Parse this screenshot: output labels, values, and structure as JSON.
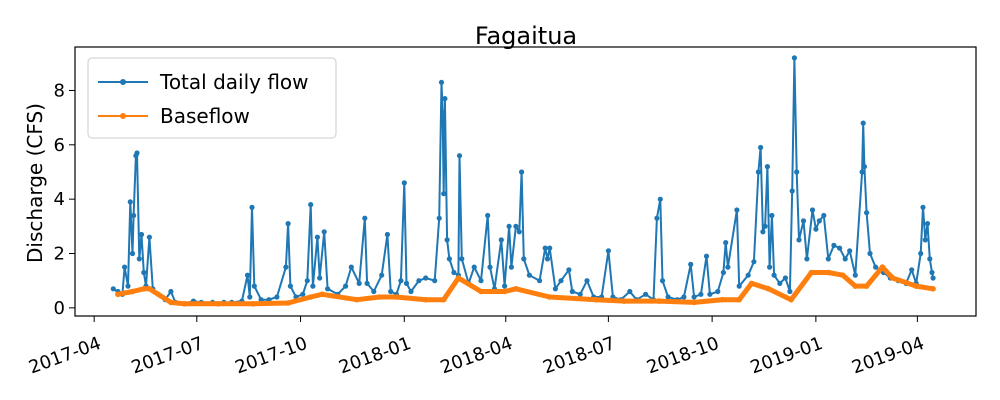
{
  "chart_data": {
    "type": "line",
    "title": "Fagaitua",
    "xlabel": "",
    "ylabel": "Discharge (CFS)",
    "ylim": [
      -0.3,
      9.6
    ],
    "xlim": [
      "2017-03-15",
      "2019-05-23"
    ],
    "yticks": [
      0,
      2,
      4,
      6,
      8
    ],
    "xticks": [
      "2017-04",
      "2017-07",
      "2017-10",
      "2018-01",
      "2018-04",
      "2018-07",
      "2018-10",
      "2019-01",
      "2019-04"
    ],
    "legend": "upper-left",
    "grid": false,
    "colors": {
      "total": "#1f77b4",
      "baseflow": "#ff7f0e"
    },
    "series": [
      {
        "name": "Total daily flow",
        "points": [
          [
            "2017-04-18",
            0.7
          ],
          [
            "2017-04-22",
            0.6
          ],
          [
            "2017-04-26",
            0.5
          ],
          [
            "2017-04-28",
            1.5
          ],
          [
            "2017-05-01",
            0.8
          ],
          [
            "2017-05-03",
            3.9
          ],
          [
            "2017-05-05",
            2.0
          ],
          [
            "2017-05-06",
            3.4
          ],
          [
            "2017-05-08",
            5.6
          ],
          [
            "2017-05-09",
            5.7
          ],
          [
            "2017-05-11",
            1.8
          ],
          [
            "2017-05-13",
            2.7
          ],
          [
            "2017-05-15",
            1.3
          ],
          [
            "2017-05-17",
            0.8
          ],
          [
            "2017-05-20",
            2.6
          ],
          [
            "2017-05-23",
            0.7
          ],
          [
            "2017-05-28",
            0.5
          ],
          [
            "2017-06-03",
            0.3
          ],
          [
            "2017-06-08",
            0.6
          ],
          [
            "2017-06-12",
            0.2
          ],
          [
            "2017-06-20",
            0.15
          ],
          [
            "2017-06-28",
            0.25
          ],
          [
            "2017-07-05",
            0.2
          ],
          [
            "2017-07-15",
            0.2
          ],
          [
            "2017-07-25",
            0.2
          ],
          [
            "2017-08-01",
            0.2
          ],
          [
            "2017-08-10",
            0.25
          ],
          [
            "2017-08-15",
            1.2
          ],
          [
            "2017-08-17",
            0.4
          ],
          [
            "2017-08-19",
            3.7
          ],
          [
            "2017-08-21",
            0.8
          ],
          [
            "2017-08-27",
            0.3
          ],
          [
            "2017-09-03",
            0.3
          ],
          [
            "2017-09-10",
            0.4
          ],
          [
            "2017-09-18",
            1.5
          ],
          [
            "2017-09-20",
            3.1
          ],
          [
            "2017-09-22",
            0.8
          ],
          [
            "2017-09-27",
            0.4
          ],
          [
            "2017-10-03",
            0.5
          ],
          [
            "2017-10-07",
            1.0
          ],
          [
            "2017-10-10",
            3.8
          ],
          [
            "2017-10-12",
            0.8
          ],
          [
            "2017-10-16",
            2.6
          ],
          [
            "2017-10-18",
            1.1
          ],
          [
            "2017-10-22",
            2.8
          ],
          [
            "2017-10-25",
            0.7
          ],
          [
            "2017-11-03",
            0.5
          ],
          [
            "2017-11-10",
            0.8
          ],
          [
            "2017-11-15",
            1.5
          ],
          [
            "2017-11-22",
            0.9
          ],
          [
            "2017-11-27",
            3.3
          ],
          [
            "2017-11-29",
            0.9
          ],
          [
            "2017-12-05",
            0.6
          ],
          [
            "2017-12-12",
            1.2
          ],
          [
            "2017-12-17",
            2.7
          ],
          [
            "2017-12-20",
            0.6
          ],
          [
            "2017-12-25",
            0.5
          ],
          [
            "2017-12-29",
            1.0
          ],
          [
            "2018-01-01",
            4.6
          ],
          [
            "2018-01-03",
            0.9
          ],
          [
            "2018-01-07",
            0.6
          ],
          [
            "2018-01-14",
            1.0
          ],
          [
            "2018-01-20",
            1.1
          ],
          [
            "2018-01-28",
            1.0
          ],
          [
            "2018-02-01",
            3.3
          ],
          [
            "2018-02-03",
            8.3
          ],
          [
            "2018-02-04",
            7.2
          ],
          [
            "2018-02-05",
            4.2
          ],
          [
            "2018-02-06",
            7.7
          ],
          [
            "2018-02-08",
            2.5
          ],
          [
            "2018-02-10",
            1.8
          ],
          [
            "2018-02-14",
            1.3
          ],
          [
            "2018-02-18",
            1.2
          ],
          [
            "2018-02-19",
            5.6
          ],
          [
            "2018-02-21",
            1.8
          ],
          [
            "2018-02-27",
            0.9
          ],
          [
            "2018-03-04",
            1.5
          ],
          [
            "2018-03-10",
            1.0
          ],
          [
            "2018-03-16",
            3.4
          ],
          [
            "2018-03-18",
            1.5
          ],
          [
            "2018-03-22",
            0.7
          ],
          [
            "2018-03-28",
            2.5
          ],
          [
            "2018-03-31",
            0.8
          ],
          [
            "2018-04-04",
            3.0
          ],
          [
            "2018-04-06",
            1.5
          ],
          [
            "2018-04-10",
            3.0
          ],
          [
            "2018-04-13",
            2.8
          ],
          [
            "2018-04-15",
            5.0
          ],
          [
            "2018-04-17",
            1.8
          ],
          [
            "2018-04-22",
            1.2
          ],
          [
            "2018-05-01",
            1.0
          ],
          [
            "2018-05-06",
            2.2
          ],
          [
            "2018-05-08",
            1.8
          ],
          [
            "2018-05-10",
            2.2
          ],
          [
            "2018-05-15",
            0.7
          ],
          [
            "2018-05-20",
            1.0
          ],
          [
            "2018-05-27",
            1.4
          ],
          [
            "2018-05-30",
            0.6
          ],
          [
            "2018-06-06",
            0.5
          ],
          [
            "2018-06-12",
            1.0
          ],
          [
            "2018-06-18",
            0.4
          ],
          [
            "2018-06-25",
            0.4
          ],
          [
            "2018-07-01",
            2.1
          ],
          [
            "2018-07-05",
            0.4
          ],
          [
            "2018-07-12",
            0.3
          ],
          [
            "2018-07-20",
            0.6
          ],
          [
            "2018-07-26",
            0.3
          ],
          [
            "2018-08-03",
            0.5
          ],
          [
            "2018-08-10",
            0.3
          ],
          [
            "2018-08-13",
            3.3
          ],
          [
            "2018-08-16",
            4.0
          ],
          [
            "2018-08-18",
            1.0
          ],
          [
            "2018-08-23",
            0.4
          ],
          [
            "2018-08-31",
            0.3
          ],
          [
            "2018-09-06",
            0.4
          ],
          [
            "2018-09-12",
            1.6
          ],
          [
            "2018-09-15",
            0.4
          ],
          [
            "2018-09-21",
            0.5
          ],
          [
            "2018-09-26",
            1.9
          ],
          [
            "2018-09-29",
            0.5
          ],
          [
            "2018-10-06",
            0.6
          ],
          [
            "2018-10-11",
            1.3
          ],
          [
            "2018-10-13",
            2.4
          ],
          [
            "2018-10-15",
            1.5
          ],
          [
            "2018-10-23",
            3.6
          ],
          [
            "2018-10-25",
            0.8
          ],
          [
            "2018-11-02",
            1.2
          ],
          [
            "2018-11-07",
            1.7
          ],
          [
            "2018-11-11",
            5.0
          ],
          [
            "2018-11-13",
            5.9
          ],
          [
            "2018-11-15",
            2.8
          ],
          [
            "2018-11-17",
            3.0
          ],
          [
            "2018-11-19",
            5.2
          ],
          [
            "2018-11-21",
            1.5
          ],
          [
            "2018-11-23",
            3.4
          ],
          [
            "2018-11-25",
            1.2
          ],
          [
            "2018-11-30",
            0.9
          ],
          [
            "2018-12-05",
            1.1
          ],
          [
            "2018-12-09",
            0.6
          ],
          [
            "2018-12-11",
            4.3
          ],
          [
            "2018-12-13",
            9.2
          ],
          [
            "2018-12-15",
            5.0
          ],
          [
            "2018-12-17",
            2.5
          ],
          [
            "2018-12-21",
            3.2
          ],
          [
            "2018-12-24",
            1.8
          ],
          [
            "2018-12-29",
            3.6
          ],
          [
            "2019-01-01",
            2.9
          ],
          [
            "2019-01-04",
            3.2
          ],
          [
            "2019-01-08",
            3.4
          ],
          [
            "2019-01-12",
            1.8
          ],
          [
            "2019-01-17",
            2.3
          ],
          [
            "2019-01-22",
            2.2
          ],
          [
            "2019-01-27",
            1.8
          ],
          [
            "2019-01-31",
            2.1
          ],
          [
            "2019-02-05",
            1.2
          ],
          [
            "2019-02-11",
            5.0
          ],
          [
            "2019-02-12",
            6.8
          ],
          [
            "2019-02-13",
            5.2
          ],
          [
            "2019-02-15",
            3.5
          ],
          [
            "2019-02-18",
            2.0
          ],
          [
            "2019-02-23",
            1.5
          ],
          [
            "2019-03-02",
            1.3
          ],
          [
            "2019-03-08",
            1.1
          ],
          [
            "2019-03-15",
            1.0
          ],
          [
            "2019-03-22",
            0.9
          ],
          [
            "2019-03-27",
            1.4
          ],
          [
            "2019-03-31",
            0.9
          ],
          [
            "2019-04-04",
            2.0
          ],
          [
            "2019-04-06",
            3.7
          ],
          [
            "2019-04-08",
            2.5
          ],
          [
            "2019-04-10",
            3.1
          ],
          [
            "2019-04-12",
            1.8
          ],
          [
            "2019-04-14",
            1.3
          ],
          [
            "2019-04-15",
            1.1
          ]
        ]
      },
      {
        "name": "Baseflow",
        "points": [
          [
            "2017-04-22",
            0.5
          ],
          [
            "2017-05-05",
            0.6
          ],
          [
            "2017-05-15",
            0.7
          ],
          [
            "2017-05-20",
            0.7
          ],
          [
            "2017-06-08",
            0.2
          ],
          [
            "2017-06-20",
            0.15
          ],
          [
            "2017-07-20",
            0.15
          ],
          [
            "2017-08-20",
            0.15
          ],
          [
            "2017-09-20",
            0.18
          ],
          [
            "2017-10-10",
            0.4
          ],
          [
            "2017-10-20",
            0.5
          ],
          [
            "2017-11-20",
            0.3
          ],
          [
            "2017-12-10",
            0.4
          ],
          [
            "2017-12-25",
            0.4
          ],
          [
            "2018-01-20",
            0.3
          ],
          [
            "2018-02-05",
            0.3
          ],
          [
            "2018-02-18",
            1.1
          ],
          [
            "2018-03-10",
            0.6
          ],
          [
            "2018-03-31",
            0.6
          ],
          [
            "2018-04-10",
            0.7
          ],
          [
            "2018-05-10",
            0.4
          ],
          [
            "2018-06-20",
            0.3
          ],
          [
            "2018-07-15",
            0.25
          ],
          [
            "2018-08-15",
            0.25
          ],
          [
            "2018-09-15",
            0.2
          ],
          [
            "2018-10-10",
            0.3
          ],
          [
            "2018-10-25",
            0.3
          ],
          [
            "2018-11-05",
            0.9
          ],
          [
            "2018-11-20",
            0.7
          ],
          [
            "2018-12-10",
            0.3
          ],
          [
            "2018-12-28",
            1.3
          ],
          [
            "2019-01-12",
            1.3
          ],
          [
            "2019-01-25",
            1.2
          ],
          [
            "2019-02-05",
            0.8
          ],
          [
            "2019-02-15",
            0.8
          ],
          [
            "2019-03-01",
            1.5
          ],
          [
            "2019-03-10",
            1.1
          ],
          [
            "2019-03-31",
            0.8
          ],
          [
            "2019-04-15",
            0.7
          ]
        ]
      }
    ]
  }
}
